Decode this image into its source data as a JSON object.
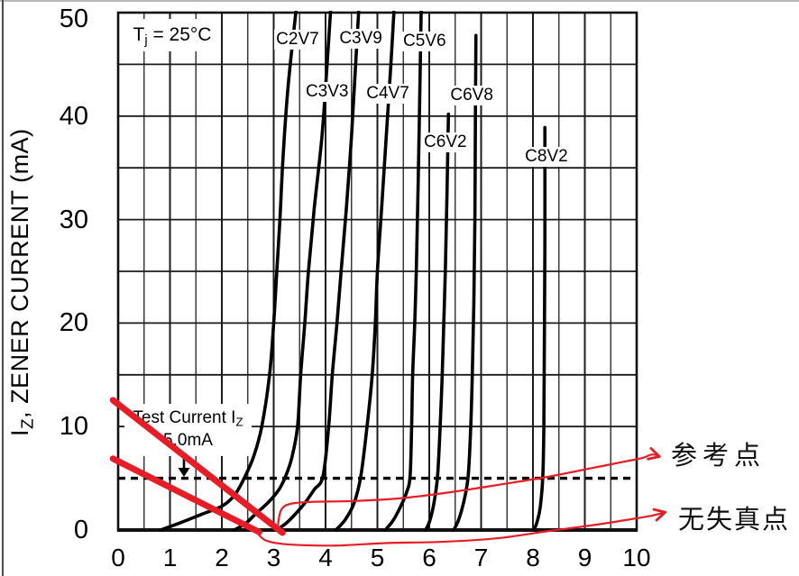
{
  "page": {
    "background": "#ffffff"
  },
  "colors": {
    "curve": "#000000",
    "grid_major": "#1c1c1c",
    "grid_minor": "#2e2e2e",
    "border": "#111111",
    "annotation_red": "#e81c24",
    "text": "#000000",
    "chip_background": "#ffffff"
  },
  "y_axis": {
    "title_prefix": "I",
    "title_sub": "Z",
    "title_rest": ", ZENER CURRENT (mA)"
  },
  "notes": {
    "tj": {
      "prefix": "T",
      "sub": "j",
      "rest": " = 25°C"
    },
    "test_current": {
      "line1": "Test Current I",
      "line1_sub": "Z",
      "line2": "5.0mA"
    }
  },
  "chart_data": {
    "type": "line",
    "title": "",
    "xlabel": "",
    "ylabel": "IZ, ZENER CURRENT (mA)",
    "xlim": [
      0,
      10
    ],
    "ylim": [
      0,
      50
    ],
    "x_ticks": [
      0,
      1,
      2,
      3,
      4,
      5,
      6,
      7,
      8,
      9,
      10
    ],
    "y_ticks": [
      0,
      10,
      20,
      30,
      40,
      50
    ],
    "grid": {
      "x_step": 0.5,
      "y_step": 5
    },
    "legend_position": "inline-labels",
    "test_current_line": {
      "value_ma": 5.0,
      "style": "dashed"
    },
    "condition": "Tj = 25C",
    "series": [
      {
        "name": "C2V7",
        "label_at": [
          3.46,
          47.4
        ],
        "points": [
          [
            0.82,
            0
          ],
          [
            1.2,
            0.7
          ],
          [
            1.6,
            1.5
          ],
          [
            2.0,
            2.3
          ],
          [
            2.25,
            3.4
          ],
          [
            2.45,
            5.2
          ],
          [
            2.62,
            7.2
          ],
          [
            2.77,
            10
          ],
          [
            2.92,
            15
          ],
          [
            3.0,
            20
          ],
          [
            3.06,
            25
          ],
          [
            3.12,
            30
          ],
          [
            3.18,
            36
          ],
          [
            3.28,
            43
          ],
          [
            3.47,
            52
          ]
        ]
      },
      {
        "name": "C3V3",
        "label_at": [
          4.03,
          42.3
        ],
        "points": [
          [
            2.24,
            0
          ],
          [
            2.45,
            0.6
          ],
          [
            2.64,
            1.5
          ],
          [
            2.9,
            2.7
          ],
          [
            3.1,
            3.9
          ],
          [
            3.23,
            5.2
          ],
          [
            3.35,
            7
          ],
          [
            3.46,
            10
          ],
          [
            3.52,
            15
          ],
          [
            3.6,
            20
          ],
          [
            3.67,
            25
          ],
          [
            3.78,
            31
          ],
          [
            3.93,
            38
          ],
          [
            4.03,
            45
          ],
          [
            4.12,
            52
          ]
        ]
      },
      {
        "name": "C3V9",
        "label_at": [
          4.68,
          47.5
        ],
        "points": [
          [
            3.06,
            0
          ],
          [
            3.25,
            0.7
          ],
          [
            3.41,
            1.5
          ],
          [
            3.6,
            2.6
          ],
          [
            3.78,
            3.9
          ],
          [
            3.95,
            5.2
          ],
          [
            4.06,
            10
          ],
          [
            4.13,
            15
          ],
          [
            4.22,
            20
          ],
          [
            4.3,
            25
          ],
          [
            4.4,
            31
          ],
          [
            4.5,
            38
          ],
          [
            4.58,
            45
          ],
          [
            4.66,
            52
          ]
        ]
      },
      {
        "name": "C4V7",
        "label_at": [
          5.2,
          42.2
        ],
        "points": [
          [
            4.2,
            0
          ],
          [
            4.38,
            1
          ],
          [
            4.55,
            2.6
          ],
          [
            4.68,
            5.2
          ],
          [
            4.8,
            10
          ],
          [
            4.9,
            15
          ],
          [
            4.96,
            20
          ],
          [
            5.0,
            25
          ],
          [
            5.08,
            31
          ],
          [
            5.17,
            38
          ],
          [
            5.26,
            45
          ],
          [
            5.34,
            52
          ]
        ]
      },
      {
        "name": "C5V6",
        "label_at": [
          5.91,
          47.2
        ],
        "points": [
          [
            5.15,
            0
          ],
          [
            5.3,
            0.9
          ],
          [
            5.45,
            2.3
          ],
          [
            5.56,
            3.6
          ],
          [
            5.63,
            5.2
          ],
          [
            5.66,
            10
          ],
          [
            5.68,
            15
          ],
          [
            5.72,
            20
          ],
          [
            5.75,
            25
          ],
          [
            5.78,
            32
          ],
          [
            5.81,
            40
          ],
          [
            5.85,
            52
          ]
        ]
      },
      {
        "name": "C6V2",
        "label_at": [
          6.31,
          37.5
        ],
        "points": [
          [
            5.93,
            0
          ],
          [
            6.01,
            0.9
          ],
          [
            6.09,
            2.6
          ],
          [
            6.16,
            5.2
          ],
          [
            6.21,
            10
          ],
          [
            6.25,
            15
          ],
          [
            6.28,
            20
          ],
          [
            6.31,
            25
          ],
          [
            6.34,
            32
          ],
          [
            6.37,
            40.2
          ]
        ]
      },
      {
        "name": "C6V8",
        "label_at": [
          6.82,
          42.0
        ],
        "points": [
          [
            6.47,
            0
          ],
          [
            6.56,
            0.9
          ],
          [
            6.66,
            2.6
          ],
          [
            6.75,
            5.2
          ],
          [
            6.8,
            10
          ],
          [
            6.83,
            15
          ],
          [
            6.86,
            22
          ],
          [
            6.88,
            30
          ],
          [
            6.89,
            40
          ],
          [
            6.9,
            47.8
          ]
        ]
      },
      {
        "name": "C8V2",
        "label_at": [
          8.26,
          36.1
        ],
        "points": [
          [
            8.02,
            0
          ],
          [
            8.08,
            0.8
          ],
          [
            8.14,
            2.2
          ],
          [
            8.19,
            5.2
          ],
          [
            8.21,
            10
          ],
          [
            8.22,
            18
          ],
          [
            8.23,
            28
          ],
          [
            8.23,
            38.9
          ]
        ]
      }
    ],
    "load_lines": [
      {
        "name": "load-line-upper",
        "points": [
          [
            -0.1,
            12.55
          ],
          [
            3.17,
            -0.26
          ]
        ]
      },
      {
        "name": "load-line-lower",
        "points": [
          [
            -0.1,
            6.9
          ],
          [
            2.72,
            -0.2
          ]
        ]
      }
    ],
    "callouts": [
      {
        "label": "参考点",
        "path": [
          [
            3.08,
            0.44
          ],
          [
            3.14,
            1.9
          ],
          [
            3.3,
            2.5
          ],
          [
            3.7,
            2.72
          ],
          [
            4.5,
            2.8
          ],
          [
            5.4,
            3.05
          ],
          [
            6.4,
            3.65
          ],
          [
            7.5,
            4.5
          ],
          [
            8.3,
            5.15
          ],
          [
            9.1,
            5.95
          ],
          [
            9.8,
            6.65
          ],
          [
            10.1,
            6.95
          ],
          [
            10.3,
            7.3
          ],
          [
            10.44,
            7.1
          ]
        ]
      },
      {
        "label": "无失真点",
        "path": [
          [
            2.71,
            -0.45
          ],
          [
            2.87,
            -1.05
          ],
          [
            3.3,
            -1.4
          ],
          [
            4.2,
            -1.5
          ],
          [
            5.2,
            -1.25
          ],
          [
            6.2,
            -1.15
          ],
          [
            7.3,
            -0.8
          ],
          [
            8.3,
            -0.1
          ],
          [
            9.2,
            0.5
          ],
          [
            9.9,
            1.05
          ],
          [
            10.3,
            1.4
          ],
          [
            10.55,
            1.72
          ]
        ]
      }
    ]
  }
}
